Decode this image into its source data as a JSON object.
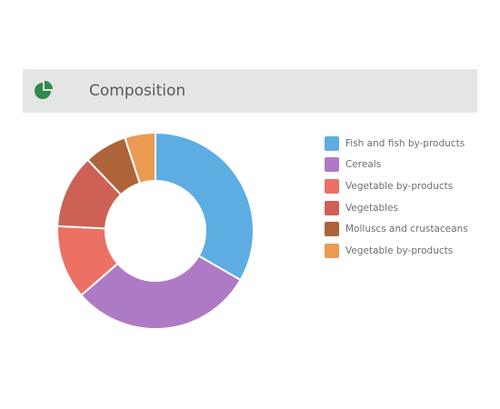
{
  "header": {
    "title": "Composition",
    "icon": "pie-chart-icon",
    "icon_color": "#2e8b4e"
  },
  "chart_data": {
    "type": "pie",
    "variant": "donut",
    "title": "",
    "legend_position": "right",
    "categories": [
      "Fish and fish by-products",
      "Cereals",
      "Vegetable by-products",
      "Vegetables",
      "Molluscs and crustaceans",
      "Vegetable by-products"
    ],
    "values": [
      33,
      30,
      12,
      12,
      7,
      5
    ],
    "colors": [
      "#5dade2",
      "#af7ac5",
      "#ec7063",
      "#cd6155",
      "#ad643a",
      "#eb9a52"
    ]
  }
}
